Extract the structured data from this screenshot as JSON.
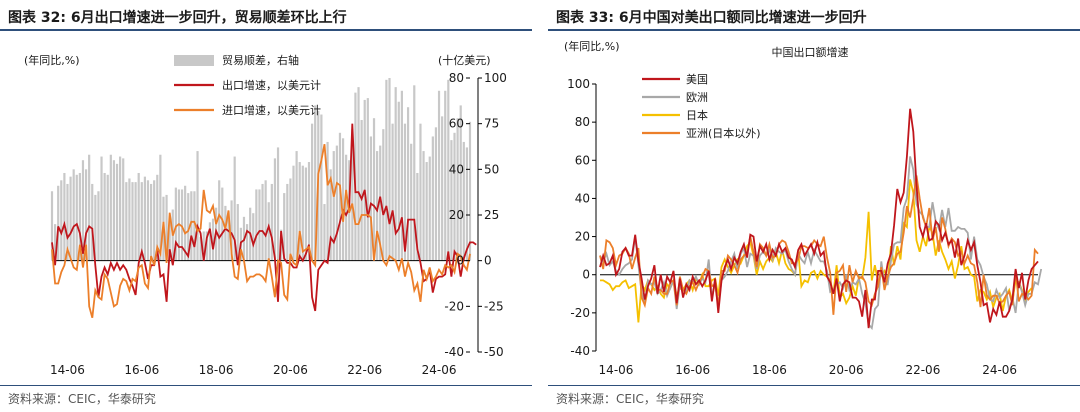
{
  "colors": {
    "accent": "#2e4f7b",
    "export": "#c0161c",
    "import": "#ec7f2a",
    "balance": "#c8c8c8",
    "us": "#c0161c",
    "eu": "#a8a8a8",
    "japan": "#f5c000",
    "asia": "#ec7f2a"
  },
  "left": {
    "title": "图表 32:  6月出口增速进一步回升，贸易顺差环比上行",
    "unit_left": "(年同比,%)",
    "unit_right": "(十亿美元)",
    "source": "资料来源：CEIC，华泰研究"
  },
  "right": {
    "title": "图表 33:  6月中国对美出口额同比增速进一步回升",
    "unit_left": "(年同比,%)",
    "source": "资料来源：CEIC，华泰研究"
  },
  "chart_data": [
    {
      "type": "bar+line",
      "x_start": "2014-01",
      "x_ticks": [
        "14-06",
        "16-06",
        "18-06",
        "20-06",
        "22-06",
        "24-06"
      ],
      "y_left": {
        "lim": [
          -40,
          80
        ],
        "ticks": [
          -40,
          -20,
          0,
          20,
          40,
          60,
          80
        ]
      },
      "y_right": {
        "lim": [
          -50,
          100
        ],
        "ticks": [
          -50,
          -25,
          0,
          25,
          50,
          75,
          100
        ]
      },
      "series": [
        {
          "name": "贸易顺差，右轴",
          "kind": "bar",
          "axis": "right",
          "values": [
            38,
            20,
            41,
            44,
            48,
            42,
            46,
            50,
            47,
            48,
            55,
            50,
            58,
            42,
            36,
            38,
            57,
            48,
            47,
            58,
            55,
            53,
            57,
            56,
            43,
            45,
            43,
            43,
            48,
            43,
            46,
            44,
            42,
            44,
            47,
            58,
            35,
            36,
            24,
            28,
            40,
            39,
            39,
            41,
            37,
            38,
            38,
            60,
            13,
            16,
            16,
            21,
            23,
            29,
            44,
            40,
            30,
            27,
            33,
            57,
            31,
            18,
            24,
            20,
            29,
            26,
            39,
            39,
            42,
            44,
            32,
            42,
            56,
            62,
            17,
            37,
            42,
            45,
            52,
            60,
            54,
            52,
            51,
            54,
            75,
            85,
            82,
            80,
            31,
            65,
            50,
            60,
            63,
            70,
            67,
            58,
            55,
            72,
            92,
            95,
            77,
            88,
            89,
            68,
            78,
            60,
            63,
            72,
            99,
            100,
            75,
            95,
            87,
            93,
            75,
            84,
            64,
            96,
            48,
            75,
            60,
            54,
            57,
            68,
            73,
            93,
            79,
            93,
            99,
            66,
            70,
            78,
            85,
            65,
            62,
            76
          ]
        },
        {
          "name": "出口增速，以美元计",
          "kind": "line",
          "axis": "left",
          "values": [
            8,
            -2,
            15,
            12,
            16,
            10,
            12,
            15,
            16,
            12,
            3,
            12,
            15,
            14,
            -2,
            -16,
            -7,
            -3,
            -6,
            -1,
            -4,
            -1,
            -4,
            -2,
            -4,
            -8,
            -11,
            -15,
            -1,
            4,
            -1,
            -8,
            -2,
            -2,
            5,
            -7,
            -6,
            -18,
            5,
            -2,
            8,
            6,
            6,
            4,
            2,
            11,
            6,
            15,
            12,
            0,
            10,
            14,
            5,
            13,
            10,
            12,
            14,
            13,
            12,
            9,
            -2,
            8,
            9,
            13,
            12,
            7,
            11,
            13,
            13,
            11,
            15,
            10,
            1,
            -18,
            13,
            1,
            -1,
            -1,
            -3,
            -3,
            2,
            0,
            3,
            7,
            -16,
            -22,
            -4,
            -2,
            0,
            -1,
            10,
            8,
            12,
            17,
            22,
            20,
            23,
            60,
            30,
            30,
            27,
            31,
            19,
            25,
            24,
            22,
            28,
            20,
            24,
            16,
            22,
            12,
            14,
            19,
            4,
            18,
            18,
            18,
            5,
            -1,
            -9,
            -8,
            -4,
            -14,
            -8,
            -7,
            -7,
            -6,
            4,
            -7,
            4,
            2,
            -7,
            1,
            5,
            8,
            8,
            7
          ]
        },
        {
          "name": "进口增速，以美元计",
          "kind": "line",
          "axis": "left",
          "values": [
            5,
            -10,
            -10,
            -5,
            -2,
            5,
            1,
            -3,
            -4,
            7,
            -3,
            7,
            -20,
            -25,
            -13,
            -16,
            -17,
            -6,
            -8,
            -14,
            -20,
            -19,
            -11,
            -8,
            -9,
            -13,
            -8,
            -9,
            -3,
            -2,
            -10,
            -12,
            2,
            -2,
            6,
            3,
            17,
            -1,
            21,
            11,
            15,
            16,
            15,
            12,
            13,
            17,
            17,
            13,
            14,
            31,
            22,
            21,
            24,
            16,
            20,
            18,
            14,
            22,
            3,
            -7,
            -8,
            5,
            0,
            -9,
            -7,
            -7,
            -6,
            -6,
            -7,
            -9,
            1,
            -7,
            -16,
            0,
            -1,
            -15,
            -17,
            3,
            -1,
            -2,
            13,
            4,
            5,
            6,
            0,
            -2,
            38,
            44,
            51,
            33,
            36,
            28,
            34,
            33,
            17,
            31,
            21,
            25,
            16,
            16,
            20,
            20,
            20,
            19,
            0,
            13,
            7,
            0,
            -2,
            2,
            1,
            0,
            -4,
            1,
            -7,
            -1,
            -5,
            -13,
            -10,
            -18,
            -4,
            -8,
            -3,
            -9,
            -7,
            -4,
            -6,
            -2,
            -3,
            -2,
            -5,
            3,
            2,
            -2,
            -4,
            3
          ]
        }
      ]
    },
    {
      "type": "line",
      "title": "中国出口额增速",
      "x_start": "2014-01",
      "x_ticks": [
        "14-06",
        "16-06",
        "18-06",
        "20-06",
        "22-06",
        "24-06"
      ],
      "ylim": [
        -40,
        100
      ],
      "yticks": [
        -40,
        -20,
        0,
        20,
        40,
        60,
        80,
        100
      ],
      "series": [
        {
          "name": "美国",
          "values": [
            4,
            10,
            5,
            6,
            10,
            0,
            3,
            12,
            14,
            10,
            10,
            21,
            7,
            -2,
            -13,
            -6,
            -2,
            5,
            -10,
            0,
            -9,
            -1,
            -4,
            2,
            -15,
            -2,
            -12,
            -5,
            -8,
            -1,
            -5,
            -3,
            -6,
            -3,
            2,
            -14,
            -2,
            -20,
            -3,
            4,
            8,
            3,
            9,
            6,
            12,
            16,
            9,
            21,
            20,
            7,
            15,
            12,
            16,
            8,
            13,
            10,
            16,
            12,
            14,
            9,
            8,
            4,
            13,
            16,
            10,
            13,
            16,
            11,
            17,
            10,
            12,
            -1,
            -4,
            -10,
            -2,
            -14,
            -5,
            -3,
            -4,
            -12,
            -12,
            -14,
            -22,
            -8,
            -28,
            -13,
            -13,
            2,
            2,
            -4,
            6,
            11,
            26,
            45,
            38,
            43,
            62,
            87,
            75,
            47,
            25,
            20,
            27,
            18,
            19,
            28,
            26,
            18,
            22,
            16,
            18,
            9,
            19,
            5,
            10,
            18,
            13,
            17,
            5,
            -4,
            -16,
            -15,
            -25,
            -18,
            -21,
            -14,
            -22,
            -22,
            -19,
            -13,
            3,
            -7,
            1,
            -13,
            -3,
            3,
            5,
            7
          ]
        },
        {
          "name": "欧洲",
          "values": [
            10,
            7,
            11,
            5,
            7,
            2,
            0,
            3,
            5,
            6,
            8,
            20,
            5,
            -9,
            -15,
            -3,
            -5,
            -4,
            -10,
            -8,
            -4,
            -11,
            -7,
            -3,
            -18,
            -5,
            -8,
            -9,
            -3,
            -4,
            -1,
            -5,
            -2,
            -4,
            8,
            -12,
            -4,
            -16,
            -3,
            -1,
            2,
            7,
            11,
            3,
            11,
            14,
            4,
            11,
            10,
            3,
            10,
            12,
            10,
            13,
            8,
            14,
            12,
            11,
            13,
            7,
            3,
            0,
            11,
            8,
            6,
            12,
            6,
            13,
            10,
            7,
            7,
            2,
            -9,
            -8,
            -5,
            -4,
            -7,
            0,
            -8,
            -4,
            -5,
            -2,
            -10,
            -15,
            -26,
            -28,
            -18,
            -16,
            7,
            -5,
            -5,
            7,
            16,
            17,
            17,
            35,
            40,
            62,
            55,
            37,
            33,
            31,
            25,
            25,
            38,
            28,
            24,
            34,
            25,
            35,
            23,
            23,
            25,
            24,
            24,
            22,
            8,
            20,
            8,
            5,
            -1,
            -5,
            -13,
            -14,
            -8,
            -12,
            -10,
            -7,
            -19,
            -12,
            -20,
            -4,
            -9,
            -16,
            -10,
            -10,
            -4,
            -5,
            3
          ]
        },
        {
          "name": "日本",
          "values": [
            -3,
            -3,
            -4,
            -5,
            -8,
            -6,
            -6,
            -4,
            -3,
            -7,
            -6,
            -5,
            -25,
            -5,
            -8,
            -3,
            -5,
            -8,
            -6,
            -10,
            -12,
            -5,
            -7,
            -3,
            -11,
            -7,
            -8,
            -5,
            -3,
            -8,
            -2,
            -5,
            0,
            -6,
            -6,
            -3,
            -2,
            -11,
            4,
            8,
            4,
            1,
            5,
            8,
            6,
            10,
            15,
            17,
            10,
            0,
            7,
            3,
            7,
            9,
            7,
            12,
            6,
            13,
            6,
            3,
            2,
            0,
            12,
            -6,
            -3,
            -4,
            1,
            2,
            -2,
            2,
            0,
            -1,
            -3,
            -10,
            5,
            -12,
            -10,
            -15,
            -12,
            -6,
            -11,
            -1,
            -2,
            9,
            33,
            -3,
            5,
            -4,
            0,
            2,
            -4,
            15,
            5,
            15,
            8,
            27,
            25,
            50,
            43,
            18,
            12,
            20,
            15,
            25,
            22,
            10,
            18,
            12,
            8,
            3,
            7,
            -2,
            5,
            15,
            3,
            4,
            0,
            -1,
            -14,
            -8,
            -9,
            -13,
            -9,
            -17,
            -12,
            -10,
            -19,
            -11,
            -8,
            -14,
            -3,
            -4,
            -8,
            -13,
            -9,
            -7
          ]
        },
        {
          "name": "亚洲(日本以外)",
          "values": [
            10,
            3,
            18,
            17,
            14,
            5,
            10,
            11,
            14,
            11,
            3,
            9,
            14,
            -12,
            -16,
            -7,
            -10,
            -1,
            -8,
            -8,
            -10,
            -10,
            -4,
            -3,
            -16,
            -1,
            -8,
            -10,
            -6,
            -4,
            -8,
            -4,
            -1,
            3,
            2,
            -6,
            -5,
            -17,
            2,
            2,
            10,
            8,
            5,
            1,
            8,
            10,
            11,
            20,
            12,
            4,
            16,
            14,
            10,
            16,
            9,
            10,
            16,
            18,
            17,
            12,
            6,
            6,
            8,
            15,
            15,
            14,
            15,
            18,
            16,
            15,
            20,
            9,
            1,
            -21,
            1,
            2,
            5,
            -9,
            5,
            -4,
            2,
            -2,
            -1,
            -4,
            -14,
            -16,
            -10,
            -6,
            4,
            -8,
            -1,
            4,
            6,
            11,
            12,
            22,
            36,
            30,
            40,
            52,
            40,
            30,
            25,
            35,
            18,
            25,
            12,
            30,
            24,
            15,
            19,
            17,
            10,
            12,
            6,
            10,
            6,
            5,
            -4,
            -17,
            0,
            -11,
            -13,
            -11,
            -11,
            -15,
            -14,
            -11,
            -9,
            -16,
            2,
            -14,
            -10,
            -11,
            -13,
            -11,
            13,
            11
          ]
        }
      ]
    }
  ]
}
